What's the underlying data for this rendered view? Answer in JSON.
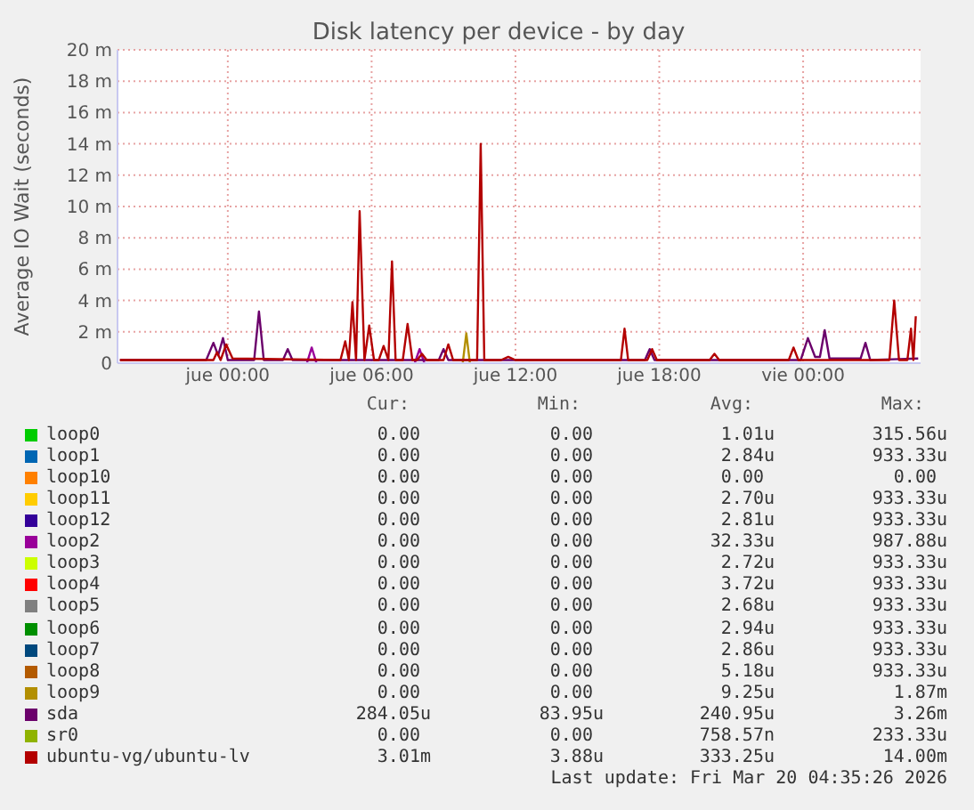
{
  "chart_data": {
    "type": "line",
    "title": "Disk latency per device - by day",
    "ylabel": "Average IO Wait (seconds)",
    "xlim": [
      "--03-18T19:24",
      "--03-20T04:54"
    ],
    "xticks": [
      {
        "value": "--03-19T00:00",
        "label": "jue 00:00"
      },
      {
        "value": "--03-19T06:00",
        "label": "jue 06:00"
      },
      {
        "value": "--03-19T12:00",
        "label": "jue 12:00"
      },
      {
        "value": "--03-19T18:00",
        "label": "jue 18:00"
      },
      {
        "value": "--03-20T00:00",
        "label": "vie 00:00"
      }
    ],
    "ylim": [
      0,
      20
    ],
    "yticks": [
      0,
      {
        "value": 2,
        "label": "2 m"
      },
      {
        "value": 4,
        "label": "4 m"
      },
      {
        "value": 6,
        "label": "6 m"
      },
      {
        "value": 8,
        "label": "8 m"
      },
      {
        "value": 10,
        "label": "10 m"
      },
      {
        "value": 12,
        "label": "12 m"
      },
      {
        "value": 14,
        "label": "14 m"
      },
      {
        "value": 16,
        "label": "16 m"
      },
      {
        "value": 18,
        "label": "18 m"
      },
      {
        "value": 20,
        "label": "20 m"
      }
    ],
    "grid": true,
    "legend": "bottom",
    "marker": "none",
    "line_style": "solid",
    "series": [
      {
        "name": "loop0",
        "color": "#00cc00"
      },
      {
        "name": "loop1",
        "color": "#0066b3"
      },
      {
        "name": "loop10",
        "color": "#ff8000"
      },
      {
        "name": "loop11",
        "color": "#ffcc00"
      },
      {
        "name": "loop12",
        "color": "#330099"
      },
      {
        "name": "loop2",
        "color": "#990099",
        "x": [
          "--03-19T03:18",
          "--03-19T03:30",
          "--03-19T03:42",
          "--03-19T05:00",
          "--03-19T07:48",
          "--03-19T08:00",
          "--03-19T08:12"
        ],
        "values": [
          0,
          1.0,
          0,
          null,
          0,
          0.9,
          0
        ]
      },
      {
        "name": "loop3",
        "color": "#ccff00"
      },
      {
        "name": "loop4",
        "color": "#ff0000"
      },
      {
        "name": "loop5",
        "color": "#808080"
      },
      {
        "name": "loop6",
        "color": "#008f00"
      },
      {
        "name": "loop7",
        "color": "#00487d"
      },
      {
        "name": "loop8",
        "color": "#b35a00"
      },
      {
        "name": "loop9",
        "color": "#b38f00",
        "x": [
          "--03-19T09:48",
          "--03-19T09:57",
          "--03-19T10:06"
        ],
        "values": [
          0,
          1.9,
          0
        ]
      },
      {
        "name": "sda",
        "color": "#6b006b",
        "x": [
          "--03-18T19:30",
          "--03-18T23:06",
          "--03-18T23:24",
          "--03-18T23:36",
          "--03-18T23:48",
          "--03-19T00:00",
          "--03-19T01:06",
          "--03-19T01:18",
          "--03-19T01:30",
          "--03-19T02:18",
          "--03-19T02:30",
          "--03-19T02:42",
          "--03-19T08:48",
          "--03-19T09:00",
          "--03-19T09:12",
          "--03-19T17:24",
          "--03-19T17:36",
          "--03-19T17:48",
          "--03-19T23:54",
          "--03-20T00:12",
          "--03-20T00:30",
          "--03-20T00:42",
          "--03-20T00:54",
          "--03-20T01:06",
          "--03-20T02:24",
          "--03-20T02:36",
          "--03-20T02:48",
          "--03-20T04:48"
        ],
        "values": [
          0.2,
          0.2,
          1.3,
          0.5,
          1.6,
          0.2,
          0.2,
          3.3,
          0.2,
          0.2,
          0.9,
          0.2,
          0.2,
          0.9,
          0.2,
          0.2,
          0.9,
          0.2,
          0.2,
          1.6,
          0.4,
          0.4,
          2.1,
          0.3,
          0.3,
          1.3,
          0.2,
          0.3
        ]
      },
      {
        "name": "sr0",
        "color": "#8fb300"
      },
      {
        "name": "ubuntu-vg/ubuntu-lv",
        "color": "#b30000",
        "x": [
          "--03-18T19:30",
          "--03-18T23:00",
          "--03-18T23:24",
          "--03-18T23:33",
          "--03-18T23:42",
          "--03-18T23:56",
          "--03-19T00:12",
          "--03-19T04:42",
          "--03-19T04:54",
          "--03-19T05:03",
          "--03-19T05:12",
          "--03-19T05:21",
          "--03-19T05:30",
          "--03-19T05:42",
          "--03-19T05:54",
          "--03-19T06:06",
          "--03-19T06:18",
          "--03-19T06:30",
          "--03-19T06:42",
          "--03-19T06:51",
          "--03-19T07:00",
          "--03-19T07:18",
          "--03-19T07:30",
          "--03-19T07:42",
          "--03-19T07:54",
          "--03-19T08:06",
          "--03-19T08:18",
          "--03-19T09:00",
          "--03-19T09:12",
          "--03-19T09:24",
          "--03-19T10:24",
          "--03-19T10:33",
          "--03-19T10:42",
          "--03-19T11:24",
          "--03-19T11:42",
          "--03-19T12:00",
          "--03-19T16:24",
          "--03-19T16:33",
          "--03-19T16:42",
          "--03-19T17:30",
          "--03-19T17:42",
          "--03-19T17:54",
          "--03-19T20:06",
          "--03-19T20:18",
          "--03-19T20:30",
          "--03-19T23:24",
          "--03-19T23:36",
          "--03-19T23:48",
          "--03-20T03:36",
          "--03-20T03:48",
          "--03-20T04:00",
          "--03-20T04:21",
          "--03-20T04:30",
          "--03-20T04:36",
          "--03-20T04:42"
        ],
        "values": [
          0.2,
          0.2,
          0.2,
          0.7,
          0.2,
          1.2,
          0.3,
          0.2,
          1.4,
          0.2,
          3.9,
          0.2,
          9.7,
          0.2,
          2.4,
          0.2,
          0.2,
          1.1,
          0.2,
          6.5,
          0.2,
          0.2,
          2.5,
          0.2,
          0.2,
          0.6,
          0.2,
          0.2,
          1.2,
          0.2,
          0.2,
          14.0,
          0.2,
          0.2,
          0.4,
          0.2,
          0.2,
          2.2,
          0.2,
          0.2,
          0.9,
          0.2,
          0.2,
          0.6,
          0.2,
          0.2,
          1.0,
          0.2,
          0.2,
          4.0,
          0.2,
          0.2,
          2.2,
          0.2,
          3.0
        ]
      }
    ],
    "annotations": [
      "Cur:",
      "Min:",
      "Avg:",
      "Max:",
      "0.00",
      "0.00",
      "1.01u",
      "315.56u",
      "0.00",
      "0.00",
      "2.84u",
      "933.33u",
      "0.00",
      "0.00",
      "0.00",
      "0.00",
      "0.00",
      "0.00",
      "2.70u",
      "933.33u",
      "0.00",
      "0.00",
      "2.81u",
      "933.33u",
      "0.00",
      "0.00",
      "32.33u",
      "987.88u",
      "0.00",
      "0.00",
      "2.72u",
      "933.33u",
      "0.00",
      "0.00",
      "3.72u",
      "933.33u",
      "0.00",
      "0.00",
      "2.68u",
      "933.33u",
      "0.00",
      "0.00",
      "2.94u",
      "933.33u",
      "0.00",
      "0.00",
      "2.86u",
      "933.33u",
      "0.00",
      "0.00",
      "5.18u",
      "933.33u",
      "0.00",
      "0.00",
      "9.25u",
      "1.87m",
      "284.05u",
      "83.95u",
      "240.95u",
      "3.26m",
      "0.00",
      "0.00",
      "758.57n",
      "233.33u",
      "3.01m",
      "3.88u",
      "333.25u",
      "14.00m",
      "Last update: Fri Mar 20 04:35:26 2026"
    ]
  }
}
